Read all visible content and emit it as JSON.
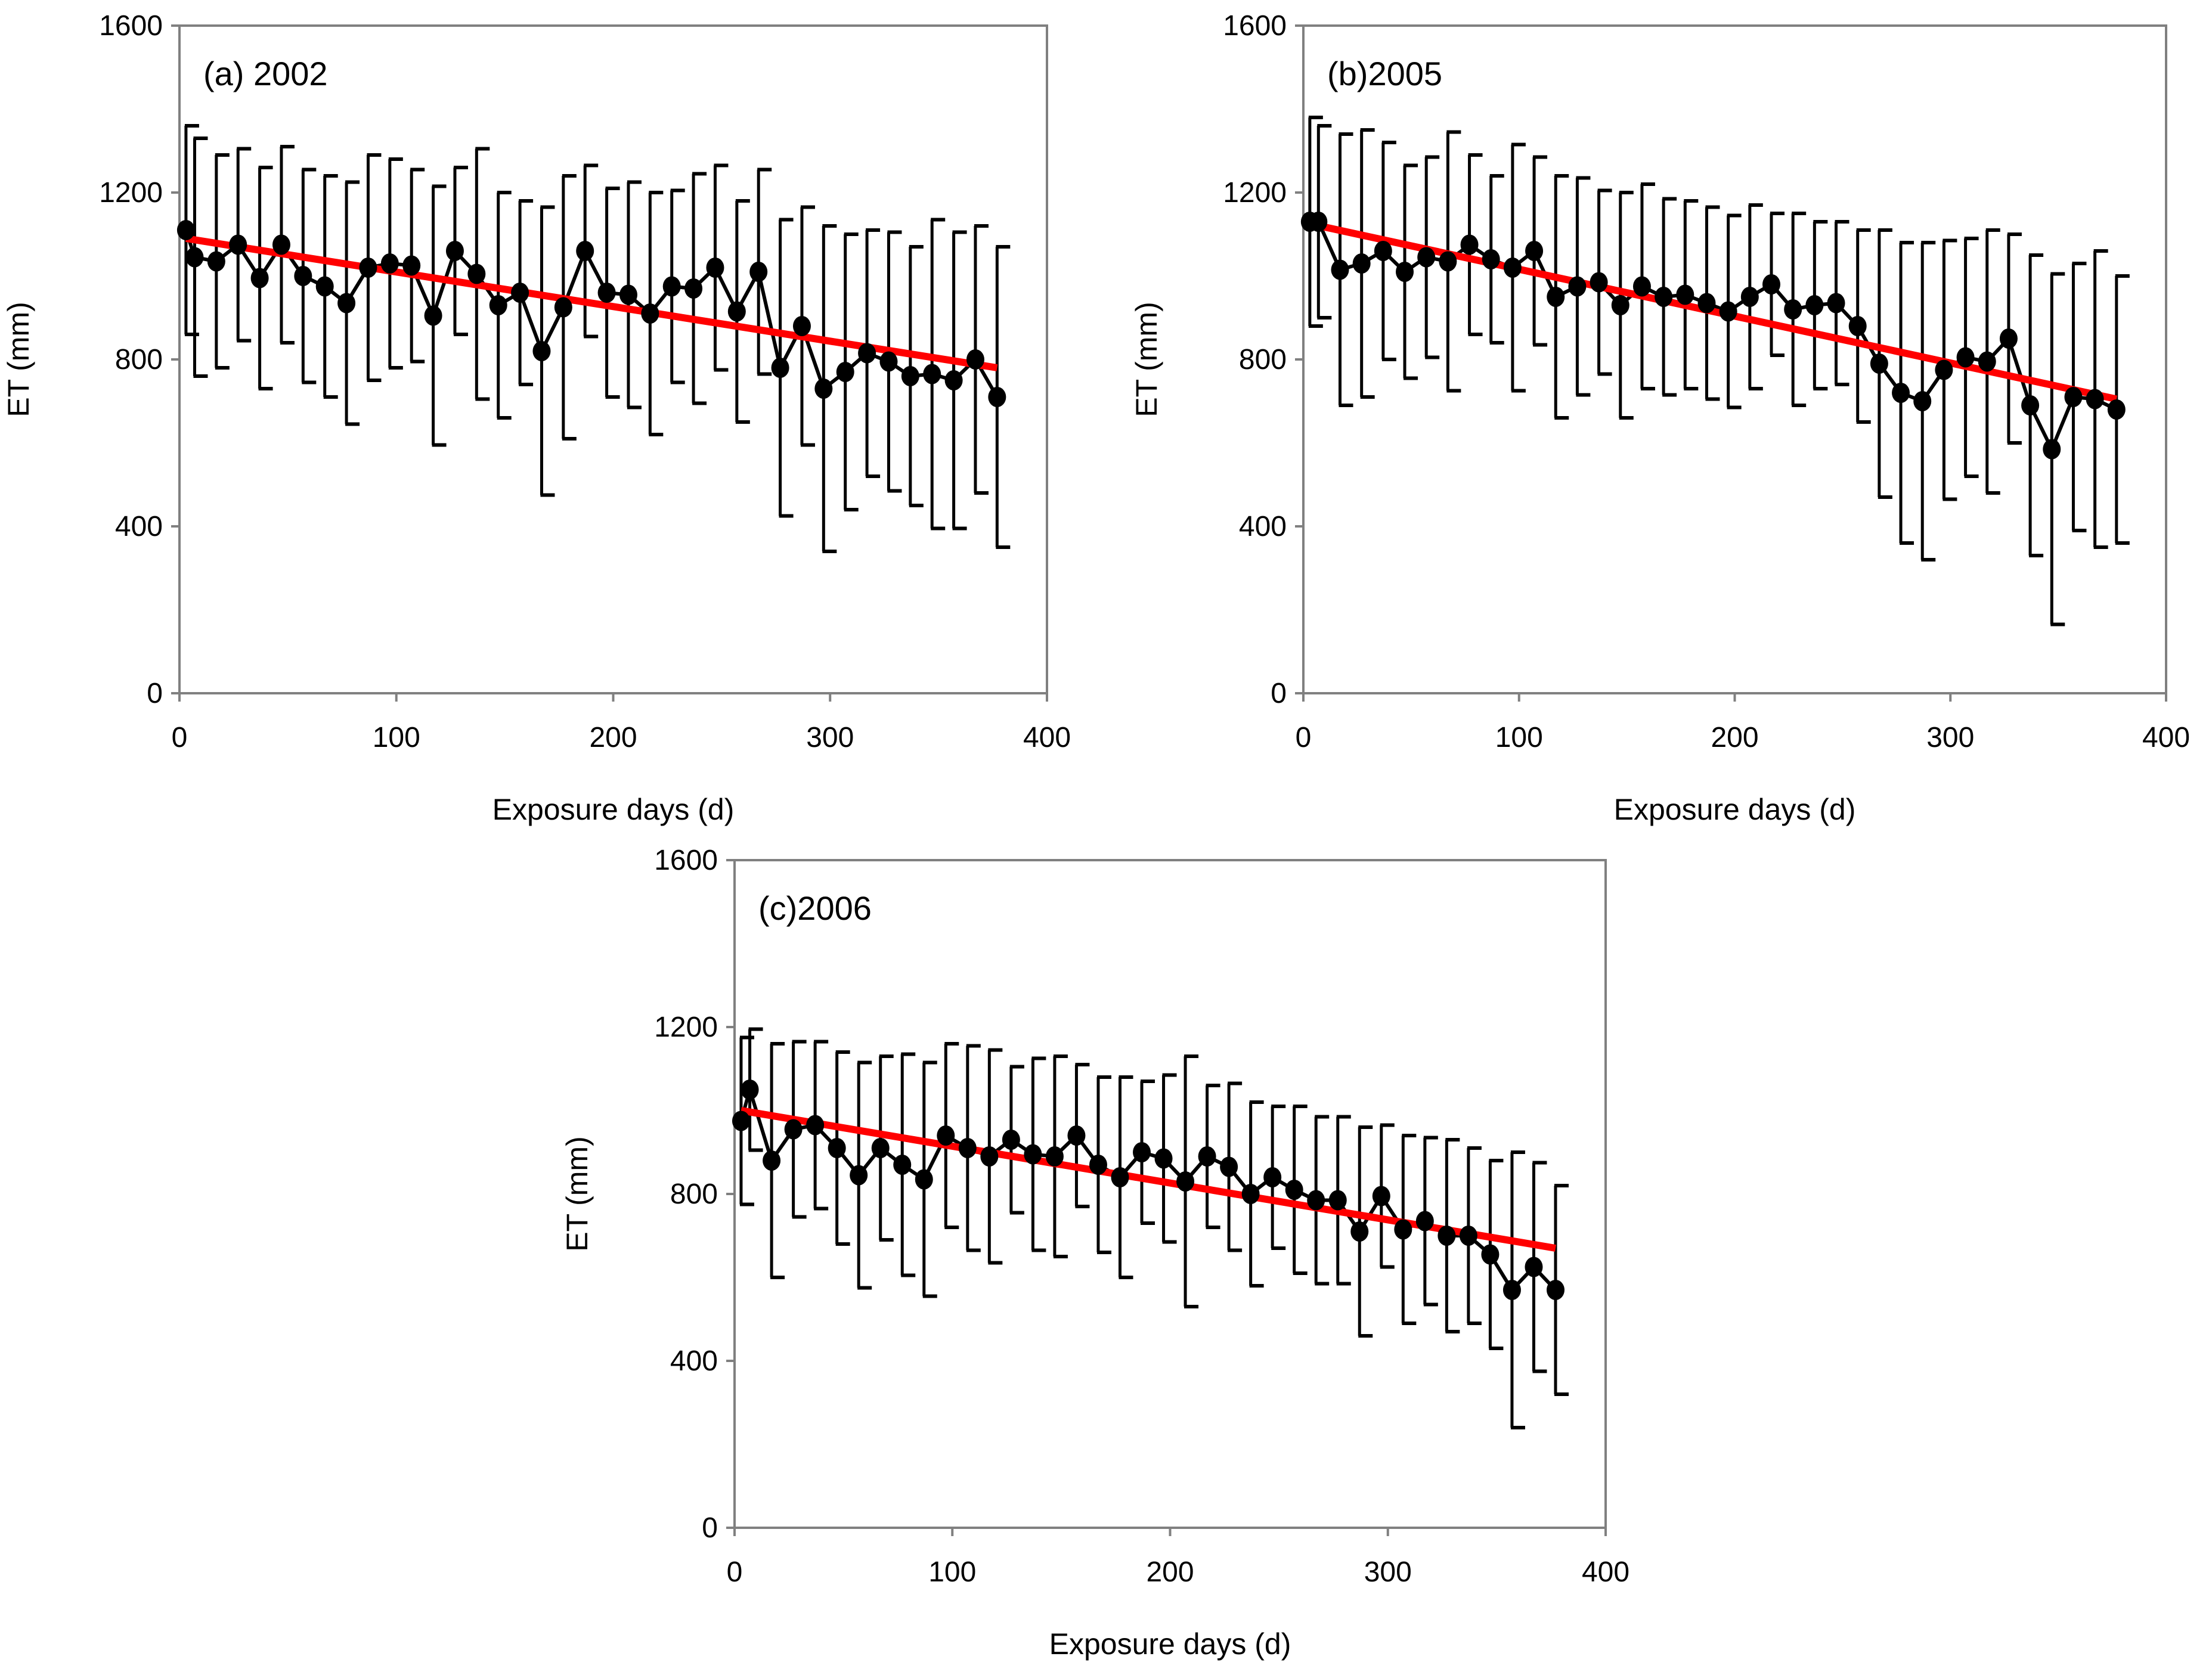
{
  "colors": {
    "series": "#000000",
    "trend": "#ff0000",
    "axis": "#808080"
  },
  "chart_data": [
    {
      "type": "line",
      "title": "(a) 2002",
      "xlabel": "Exposure days (d)",
      "ylabel": "ET (mm)",
      "xlim": [
        0,
        400
      ],
      "ylim": [
        0,
        1600
      ],
      "xticks": [
        "0",
        "100",
        "200",
        "300",
        "400"
      ],
      "yticks": [
        "0",
        "400",
        "800",
        "1200",
        "1600"
      ],
      "x": [
        3,
        7,
        17,
        27,
        37,
        47,
        57,
        67,
        77,
        87,
        97,
        107,
        117,
        127,
        137,
        147,
        157,
        167,
        177,
        187,
        197,
        207,
        217,
        227,
        237,
        247,
        257,
        267,
        277,
        287,
        297,
        307,
        317,
        327,
        337,
        347,
        357,
        367,
        377
      ],
      "values": [
        1110,
        1045,
        1035,
        1075,
        995,
        1075,
        1000,
        975,
        935,
        1020,
        1030,
        1025,
        905,
        1060,
        1005,
        930,
        960,
        820,
        925,
        1060,
        960,
        955,
        910,
        975,
        970,
        1020,
        915,
        1010,
        780,
        880,
        730,
        770,
        815,
        795,
        760,
        765,
        750,
        800,
        710
      ],
      "errors": [
        250,
        285,
        255,
        230,
        265,
        235,
        255,
        265,
        290,
        270,
        250,
        230,
        310,
        200,
        300,
        270,
        220,
        345,
        315,
        205,
        250,
        270,
        290,
        230,
        275,
        245,
        265,
        245,
        355,
        285,
        390,
        330,
        295,
        310,
        310,
        370,
        355,
        320,
        360
      ],
      "trend": {
        "x": [
          3,
          377
        ],
        "y": [
          1090,
          780
        ]
      }
    },
    {
      "type": "line",
      "title": "(b)2005",
      "xlabel": "Exposure days (d)",
      "ylabel": "ET (mm)",
      "xlim": [
        0,
        400
      ],
      "ylim": [
        0,
        1600
      ],
      "xticks": [
        "0",
        "100",
        "200",
        "300",
        "400"
      ],
      "yticks": [
        "0",
        "400",
        "800",
        "1200",
        "1600"
      ],
      "x": [
        3,
        7,
        17,
        27,
        37,
        47,
        57,
        67,
        77,
        87,
        97,
        107,
        117,
        127,
        137,
        147,
        157,
        167,
        177,
        187,
        197,
        207,
        217,
        227,
        237,
        247,
        257,
        267,
        277,
        287,
        297,
        307,
        317,
        327,
        337,
        347,
        357,
        367,
        377
      ],
      "values": [
        1130,
        1130,
        1015,
        1030,
        1060,
        1010,
        1045,
        1035,
        1075,
        1040,
        1020,
        1060,
        950,
        975,
        985,
        930,
        975,
        950,
        955,
        935,
        915,
        950,
        980,
        920,
        930,
        935,
        880,
        790,
        720,
        700,
        775,
        805,
        795,
        850,
        690,
        585,
        710,
        705,
        680
      ],
      "errors": [
        250,
        230,
        325,
        320,
        260,
        255,
        240,
        310,
        215,
        200,
        295,
        225,
        290,
        260,
        220,
        270,
        245,
        235,
        225,
        230,
        230,
        220,
        170,
        230,
        200,
        195,
        230,
        320,
        360,
        380,
        310,
        285,
        315,
        250,
        360,
        420,
        320,
        355,
        320
      ],
      "trend": {
        "x": [
          3,
          377
        ],
        "y": [
          1125,
          705
        ]
      }
    },
    {
      "type": "line",
      "title": "(c)2006",
      "xlabel": "Exposure days (d)",
      "ylabel": "ET (mm)",
      "xlim": [
        0,
        400
      ],
      "ylim": [
        0,
        1600
      ],
      "xticks": [
        "0",
        "100",
        "200",
        "300",
        "400"
      ],
      "yticks": [
        "0",
        "400",
        "800",
        "1200",
        "1600"
      ],
      "x": [
        3,
        7,
        17,
        27,
        37,
        47,
        57,
        67,
        77,
        87,
        97,
        107,
        117,
        127,
        137,
        147,
        157,
        167,
        177,
        187,
        197,
        207,
        217,
        227,
        237,
        247,
        257,
        267,
        277,
        287,
        297,
        307,
        317,
        327,
        337,
        347,
        357,
        367,
        377
      ],
      "values": [
        975,
        1050,
        880,
        955,
        965,
        910,
        845,
        910,
        870,
        835,
        940,
        910,
        890,
        930,
        895,
        890,
        940,
        870,
        840,
        900,
        885,
        830,
        890,
        865,
        800,
        840,
        810,
        785,
        785,
        710,
        795,
        715,
        735,
        700,
        700,
        655,
        570,
        625,
        570
      ],
      "errors": [
        200,
        145,
        280,
        210,
        200,
        230,
        270,
        220,
        265,
        280,
        220,
        245,
        255,
        175,
        230,
        240,
        170,
        210,
        240,
        170,
        200,
        300,
        170,
        200,
        220,
        170,
        200,
        200,
        200,
        250,
        170,
        225,
        200,
        230,
        210,
        225,
        330,
        250,
        250
      ],
      "trend": {
        "x": [
          3,
          377
        ],
        "y": [
          1000,
          670
        ]
      }
    }
  ]
}
